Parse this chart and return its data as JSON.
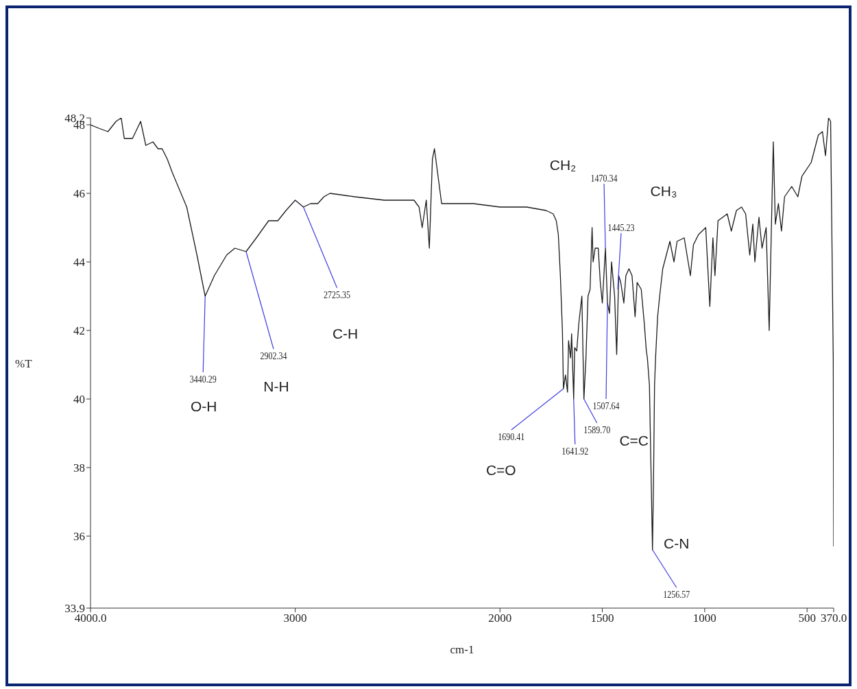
{
  "chart_data": {
    "type": "line",
    "xlabel": "cm-1",
    "ylabel": "%T",
    "xlim": [
      4000,
      370
    ],
    "xticks": [
      {
        "value": 4000,
        "label": "4000.0"
      },
      3000,
      2000,
      1500,
      1000,
      500,
      {
        "value": 370,
        "label": "370.0"
      }
    ],
    "ylim": [
      33.9,
      48.2
    ],
    "yticks": [
      33.9,
      36,
      38,
      40,
      42,
      44,
      46,
      48,
      48.2
    ],
    "marker": "none",
    "line_style": "solid",
    "x": [
      4000,
      3960,
      3915,
      3875,
      3850,
      3835,
      3795,
      3755,
      3730,
      3695,
      3670,
      3650,
      3625,
      3600,
      3530,
      3480,
      3440,
      3395,
      3335,
      3295,
      3240,
      3190,
      3130,
      3085,
      3045,
      3000,
      2960,
      2925,
      2890,
      2860,
      2830,
      2710,
      2565,
      2420,
      2395,
      2380,
      2360,
      2345,
      2330,
      2320,
      2285,
      2130,
      2000,
      1970,
      1870,
      1775,
      1740,
      1725,
      1715,
      1705,
      1695,
      1690,
      1680,
      1670,
      1665,
      1655,
      1650,
      1640,
      1635,
      1625,
      1615,
      1600,
      1590,
      1580,
      1570,
      1560,
      1550,
      1545,
      1535,
      1520,
      1510,
      1500,
      1485,
      1475,
      1465,
      1455,
      1440,
      1430,
      1420,
      1410,
      1395,
      1385,
      1370,
      1355,
      1340,
      1330,
      1310,
      1295,
      1285,
      1280,
      1270,
      1255,
      1250,
      1245,
      1240,
      1230,
      1220,
      1205,
      1170,
      1150,
      1135,
      1100,
      1070,
      1055,
      1030,
      995,
      975,
      960,
      950,
      935,
      890,
      870,
      845,
      820,
      800,
      780,
      765,
      755,
      735,
      720,
      700,
      685,
      675,
      665,
      655,
      640,
      625,
      610,
      575,
      545,
      525,
      480,
      445,
      425,
      410,
      395,
      385,
      372,
      370
    ],
    "series": [
      {
        "color": "#1a1a1a",
        "values": [
          48.0,
          47.9,
          47.8,
          48.1,
          48.2,
          47.6,
          47.6,
          48.1,
          47.4,
          47.5,
          47.3,
          47.3,
          47.0,
          46.6,
          45.6,
          44.2,
          43.0,
          43.6,
          44.2,
          44.4,
          44.3,
          44.7,
          45.2,
          45.2,
          45.5,
          45.8,
          45.6,
          45.7,
          45.7,
          45.9,
          46.0,
          45.9,
          45.8,
          45.8,
          45.6,
          45.0,
          45.8,
          44.4,
          47.0,
          47.3,
          45.7,
          45.7,
          45.6,
          45.6,
          45.6,
          45.5,
          45.4,
          45.2,
          44.8,
          43.6,
          42.0,
          40.3,
          40.7,
          40.2,
          41.7,
          41.2,
          41.9,
          40.0,
          41.5,
          41.4,
          42.2,
          43.0,
          40.0,
          41.2,
          43.0,
          43.2,
          45.0,
          44.0,
          44.4,
          44.4,
          43.4,
          42.8,
          44.4,
          42.8,
          42.5,
          44.0,
          43.0,
          41.3,
          43.6,
          43.4,
          42.8,
          43.6,
          43.8,
          43.6,
          42.4,
          43.4,
          43.2,
          42.2,
          41.4,
          41.2,
          40.4,
          35.6,
          37.6,
          40.4,
          41.2,
          42.4,
          43.0,
          43.8,
          44.6,
          44.0,
          44.6,
          44.7,
          43.6,
          44.5,
          44.8,
          45.0,
          42.7,
          44.7,
          43.6,
          45.2,
          45.4,
          44.9,
          45.5,
          45.6,
          45.4,
          44.2,
          45.1,
          44.0,
          45.3,
          44.4,
          45.0,
          42.0,
          44.8,
          47.5,
          45.1,
          45.7,
          44.9,
          45.9,
          46.2,
          45.9,
          46.5,
          46.9,
          47.7,
          47.8,
          47.1,
          48.2,
          48.1,
          41.1,
          35.7
        ]
      }
    ],
    "annotations": [
      {
        "text": "3440.29",
        "x": 3440,
        "y": 43.0
      },
      {
        "text": "2902.34",
        "x": 3240,
        "y": 44.3
      },
      {
        "text": "2725.35",
        "x": 2960,
        "y": 45.6
      },
      {
        "text": "1690.41",
        "x": 1690,
        "y": 40.3
      },
      {
        "text": "1641.92",
        "x": 1640,
        "y": 40.0
      },
      {
        "text": "1589.70",
        "x": 1590,
        "y": 40.0
      },
      {
        "text": "1470.34",
        "x": 1485,
        "y": 44.4
      },
      {
        "text": "1507.64",
        "x": 1475,
        "y": 42.8
      },
      {
        "text": "1445.23",
        "x": 1425,
        "y": 43.2
      },
      {
        "text": "1256.57",
        "x": 1255,
        "y": 35.6
      },
      "O-H",
      "N-H",
      "C-H",
      "C=O",
      "C=C",
      "CH₂",
      "CH₃",
      "C-N"
    ]
  }
}
